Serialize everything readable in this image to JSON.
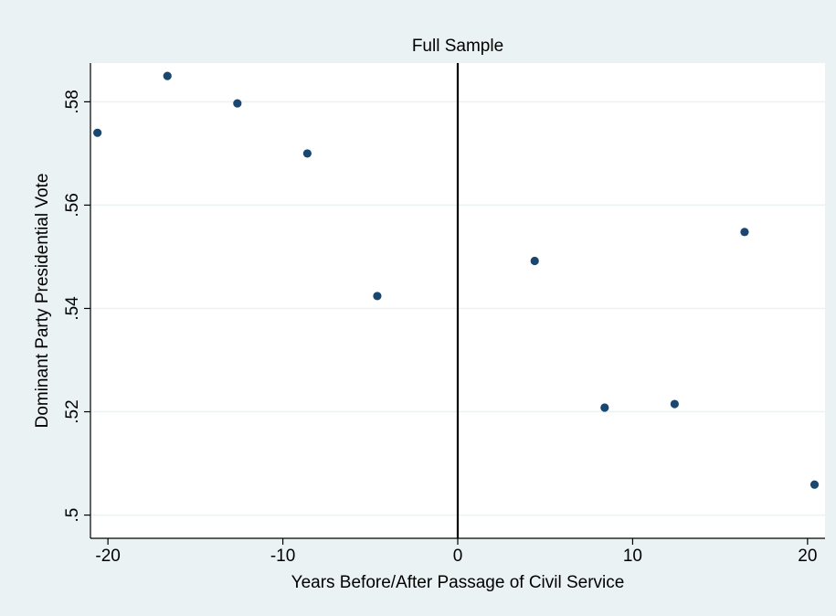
{
  "chart_data": {
    "type": "scatter",
    "title": "Full Sample",
    "xlabel": "Years Before/After Passage of Civil Service",
    "ylabel": "Dominant Party Presidential Vote",
    "xlim": [
      -21,
      21
    ],
    "ylim": [
      0.4955,
      0.5875
    ],
    "x_ticks": [
      -20,
      -10,
      0,
      10,
      20
    ],
    "x_tick_labels": [
      "-20",
      "-10",
      "0",
      "10",
      "20"
    ],
    "y_ticks": [
      0.5,
      0.52,
      0.54,
      0.56,
      0.58
    ],
    "y_tick_labels": [
      ".5",
      ".52",
      ".54",
      ".56",
      ".58"
    ],
    "grid": true,
    "reference_line_x": 0,
    "series": [
      {
        "x": [
          -20.6,
          -16.6,
          -12.6,
          -8.6,
          -4.6,
          4.4,
          8.4,
          12.4,
          16.4,
          20.4
        ],
        "y": [
          0.574,
          0.585,
          0.5797,
          0.57,
          0.5424,
          0.5492,
          0.5208,
          0.5215,
          0.5548,
          0.5059
        ]
      }
    ],
    "colors": {
      "outer_background": "#eaf2f3",
      "plot_background": "#ffffff",
      "marker": "#1a476f",
      "grid": "#eaf2f3",
      "reference_line": "#000000"
    }
  }
}
